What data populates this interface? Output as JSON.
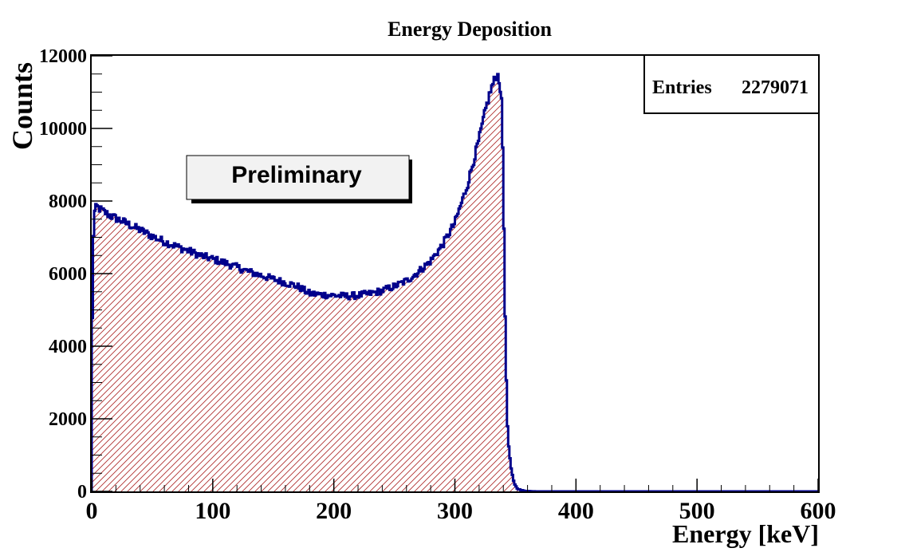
{
  "chart_data": {
    "type": "histogram",
    "title": "Energy Deposition",
    "xlabel": "Energy [keV]",
    "ylabel": "Counts",
    "xlim": [
      0,
      600
    ],
    "ylim": [
      0,
      12000
    ],
    "x_ticks": [
      0,
      100,
      200,
      300,
      400,
      500,
      600
    ],
    "x_tick_labels": [
      "0",
      "100",
      "200",
      "300",
      "400",
      "500",
      "600"
    ],
    "y_ticks": [
      0,
      2000,
      4000,
      6000,
      8000,
      10000,
      12000
    ],
    "y_tick_labels": [
      "0",
      "2000",
      "4000",
      "6000",
      "8000",
      "10000",
      "12000"
    ],
    "stats": {
      "label": "Entries",
      "value": "2279071"
    },
    "annotation": "Preliminary",
    "line_color": "#00008b",
    "hatch_color": "#b03030",
    "profile_x": [
      0,
      1,
      2,
      4,
      8,
      15,
      25,
      40,
      55,
      70,
      90,
      110,
      130,
      150,
      170,
      180,
      190,
      200,
      210,
      220,
      230,
      240,
      250,
      260,
      270,
      280,
      290,
      300,
      310,
      320,
      326,
      330,
      333,
      335,
      337,
      339,
      340,
      341,
      342,
      343,
      344,
      346,
      348,
      350,
      352,
      355,
      358,
      362,
      366,
      370,
      600
    ],
    "profile_y": [
      3000,
      6500,
      7650,
      7850,
      7750,
      7600,
      7450,
      7200,
      6950,
      6750,
      6500,
      6300,
      6050,
      5850,
      5650,
      5450,
      5420,
      5400,
      5380,
      5400,
      5450,
      5530,
      5650,
      5800,
      6050,
      6350,
      6800,
      7400,
      8400,
      9700,
      10600,
      11100,
      11350,
      11500,
      11300,
      10500,
      8500,
      6000,
      3800,
      2200,
      1400,
      700,
      350,
      150,
      70,
      30,
      15,
      6,
      2,
      0,
      0
    ]
  }
}
